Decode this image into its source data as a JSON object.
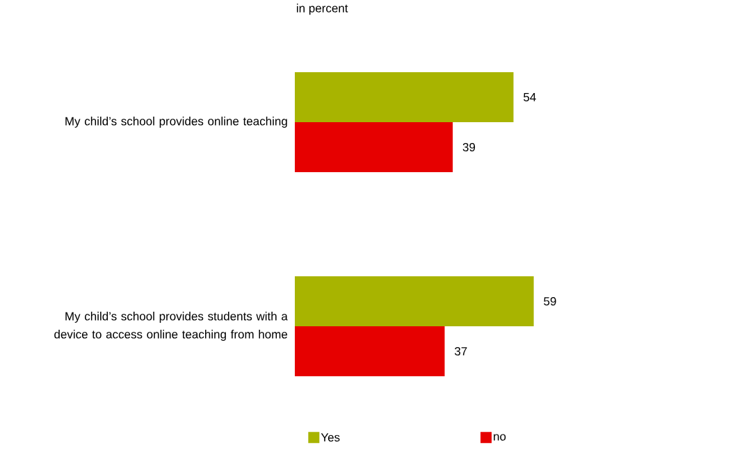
{
  "chart_data": {
    "type": "bar",
    "orientation": "horizontal",
    "subtitle": "in percent",
    "categories": [
      "My child’s school provides online teaching",
      "My child’s school provides students with a device to access online teaching from home"
    ],
    "series": [
      {
        "name": "Yes",
        "color": "#a8b400",
        "values": [
          54,
          59
        ]
      },
      {
        "name": "no",
        "color": "#e60000",
        "values": [
          39,
          37
        ]
      }
    ],
    "data_labels": true,
    "legend": "bottom",
    "tick_labels": "y"
  }
}
